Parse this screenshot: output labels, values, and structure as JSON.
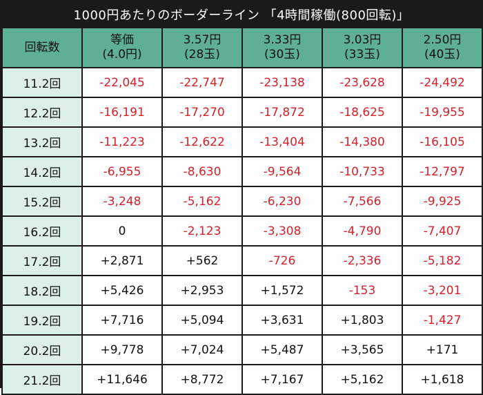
{
  "title": "1000円あたりのボーダーライン 「4時間稼働(800回転)」",
  "colors": {
    "header_bg": "#5fae96",
    "rowhead_bg": "#dcefe8",
    "negative": "#d8202a",
    "frame": "#1a1a1a"
  },
  "table": {
    "headers": [
      {
        "line1": "回転数",
        "line2": ""
      },
      {
        "line1": "等価",
        "line2": "(4.0円)"
      },
      {
        "line1": "3.57円",
        "line2": "(28玉)"
      },
      {
        "line1": "3.33円",
        "line2": "(30玉)"
      },
      {
        "line1": "3.03円",
        "line2": "(33玉)"
      },
      {
        "line1": "2.50円",
        "line2": "(40玉)"
      }
    ],
    "rows": [
      {
        "label": "11.2回",
        "cells": [
          "-22,045",
          "-22,747",
          "-23,138",
          "-23,628",
          "-24,492"
        ]
      },
      {
        "label": "12.2回",
        "cells": [
          "-16,191",
          "-17,270",
          "-17,872",
          "-18,625",
          "-19,955"
        ]
      },
      {
        "label": "13.2回",
        "cells": [
          "-11,223",
          "-12,622",
          "-13,404",
          "-14,380",
          "-16,105"
        ]
      },
      {
        "label": "14.2回",
        "cells": [
          "-6,955",
          "-8,630",
          "-9,564",
          "-10,733",
          "-12,797"
        ]
      },
      {
        "label": "15.2回",
        "cells": [
          "-3,248",
          "-5,162",
          "-6,230",
          "-7,566",
          "-9,925"
        ]
      },
      {
        "label": "16.2回",
        "cells": [
          "0",
          "-2,123",
          "-3,308",
          "-4,790",
          "-7,407"
        ]
      },
      {
        "label": "17.2回",
        "cells": [
          "+2,871",
          "+562",
          "-726",
          "-2,336",
          "-5,182"
        ]
      },
      {
        "label": "18.2回",
        "cells": [
          "+5,426",
          "+2,953",
          "+1,572",
          "-153",
          "-3,201"
        ]
      },
      {
        "label": "19.2回",
        "cells": [
          "+7,716",
          "+5,094",
          "+3,631",
          "+1,803",
          "-1,427"
        ]
      },
      {
        "label": "20.2回",
        "cells": [
          "+9,778",
          "+7,024",
          "+5,487",
          "+3,565",
          "+171"
        ]
      },
      {
        "label": "21.2回",
        "cells": [
          "+11,646",
          "+8,772",
          "+7,167",
          "+5,162",
          "+1,618"
        ]
      }
    ]
  }
}
